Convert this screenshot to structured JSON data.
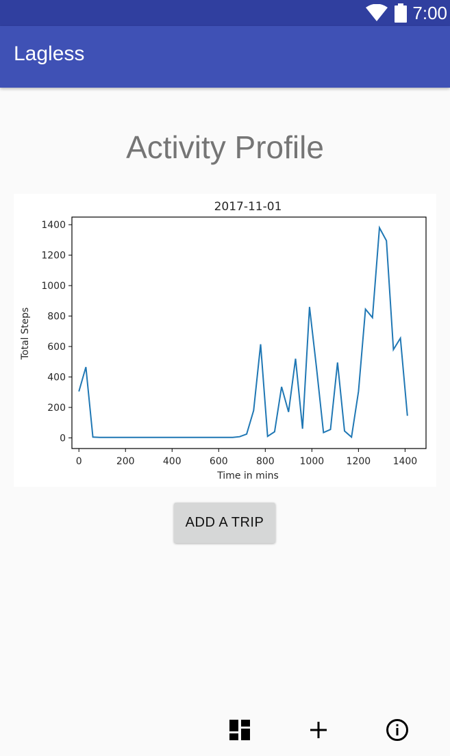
{
  "status_bar": {
    "time": "7:00",
    "icons": [
      "wifi-icon",
      "battery-icon"
    ]
  },
  "app_bar": {
    "title": "Lagless",
    "color": "#3f51b5",
    "status_color": "#303f9f"
  },
  "page": {
    "title": "Activity Profile"
  },
  "chart_data": {
    "type": "line",
    "title": "2017-11-01",
    "xlabel": "Time in mins",
    "ylabel": "Total Steps",
    "xlim": [
      -30,
      1490
    ],
    "ylim": [
      -70,
      1450
    ],
    "xticks": [
      0,
      200,
      400,
      600,
      800,
      1000,
      1200,
      1400
    ],
    "yticks": [
      0,
      200,
      400,
      600,
      800,
      1000,
      1200,
      1400
    ],
    "grid": false,
    "series": [
      {
        "color": "#1f77b4",
        "x": [
          0,
          30,
          60,
          90,
          120,
          150,
          180,
          210,
          240,
          270,
          300,
          330,
          360,
          390,
          420,
          450,
          480,
          510,
          540,
          570,
          600,
          630,
          660,
          690,
          720,
          750,
          780,
          810,
          840,
          870,
          900,
          930,
          960,
          990,
          1020,
          1050,
          1080,
          1110,
          1140,
          1170,
          1200,
          1230,
          1260,
          1290,
          1320,
          1350,
          1380,
          1410
        ],
        "y": [
          305,
          465,
          5,
          3,
          3,
          3,
          3,
          3,
          3,
          3,
          3,
          3,
          3,
          3,
          3,
          3,
          3,
          3,
          3,
          3,
          3,
          3,
          3,
          8,
          25,
          180,
          615,
          10,
          40,
          335,
          170,
          520,
          60,
          860,
          460,
          35,
          55,
          495,
          45,
          5,
          305,
          845,
          790,
          1380,
          1295,
          580,
          655,
          145
        ]
      }
    ]
  },
  "actions": {
    "add_trip_label": "ADD A TRIP"
  },
  "bottom_nav": {
    "items": [
      "dashboard-icon",
      "add-icon",
      "info-icon"
    ]
  }
}
